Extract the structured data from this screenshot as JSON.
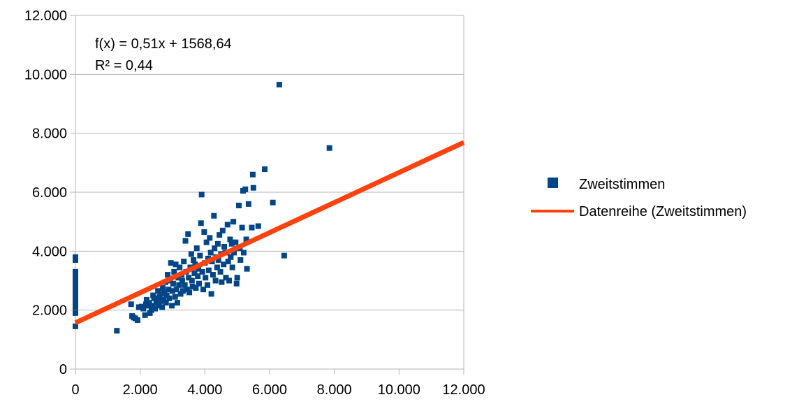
{
  "chart_data": {
    "type": "scatter",
    "title": "",
    "xlabel": "",
    "ylabel": "",
    "xlim": [
      0,
      12000
    ],
    "ylim": [
      0,
      12000
    ],
    "x_ticks": [
      0,
      2000,
      4000,
      6000,
      8000,
      10000,
      12000
    ],
    "y_ticks": [
      0,
      2000,
      4000,
      6000,
      8000,
      10000,
      12000
    ],
    "x_tick_labels": [
      "0",
      "2.000",
      "4.000",
      "6.000",
      "8.000",
      "10.000",
      "12.000"
    ],
    "y_tick_labels": [
      "0",
      "2.000",
      "4.000",
      "6.000",
      "8.000",
      "10.000",
      "12.000"
    ],
    "grid": "horizontal",
    "legend_position": "right",
    "series": [
      {
        "name": "Zweitstimmen",
        "type": "scatter",
        "color": "#004586",
        "points": [
          [
            0,
            1450
          ],
          [
            0,
            1900
          ],
          [
            0,
            2100
          ],
          [
            0,
            2250
          ],
          [
            0,
            2350
          ],
          [
            0,
            2450
          ],
          [
            0,
            2550
          ],
          [
            0,
            2650
          ],
          [
            0,
            2750
          ],
          [
            0,
            2850
          ],
          [
            0,
            2950
          ],
          [
            0,
            3100
          ],
          [
            0,
            3250
          ],
          [
            0,
            3300
          ],
          [
            0,
            3700
          ],
          [
            0,
            3800
          ],
          [
            1280,
            1300
          ],
          [
            1720,
            2200
          ],
          [
            1750,
            1800
          ],
          [
            1800,
            1750
          ],
          [
            1850,
            1720
          ],
          [
            1920,
            1660
          ],
          [
            1960,
            2100
          ],
          [
            2050,
            2120
          ],
          [
            2100,
            2050
          ],
          [
            2150,
            1830
          ],
          [
            2180,
            2200
          ],
          [
            2200,
            2350
          ],
          [
            2250,
            2150
          ],
          [
            2280,
            2250
          ],
          [
            2300,
            1900
          ],
          [
            2350,
            2000
          ],
          [
            2380,
            2150
          ],
          [
            2400,
            2500
          ],
          [
            2430,
            2400
          ],
          [
            2460,
            2050
          ],
          [
            2500,
            2250
          ],
          [
            2520,
            2350
          ],
          [
            2550,
            2650
          ],
          [
            2580,
            2150
          ],
          [
            2600,
            2450
          ],
          [
            2620,
            2300
          ],
          [
            2650,
            2550
          ],
          [
            2680,
            2100
          ],
          [
            2700,
            2750
          ],
          [
            2720,
            2350
          ],
          [
            2750,
            2600
          ],
          [
            2780,
            2950
          ],
          [
            2800,
            2250
          ],
          [
            2820,
            2500
          ],
          [
            2850,
            3200
          ],
          [
            2880,
            2700
          ],
          [
            2900,
            2400
          ],
          [
            2920,
            3000
          ],
          [
            2950,
            3600
          ],
          [
            2980,
            2150
          ],
          [
            3000,
            2650
          ],
          [
            3020,
            2900
          ],
          [
            3050,
            3300
          ],
          [
            3080,
            2450
          ],
          [
            3100,
            3550
          ],
          [
            3120,
            2700
          ],
          [
            3150,
            2250
          ],
          [
            3180,
            3100
          ],
          [
            3200,
            2850
          ],
          [
            3220,
            3450
          ],
          [
            3250,
            2550
          ],
          [
            3280,
            3200
          ],
          [
            3300,
            3000
          ],
          [
            3320,
            2650
          ],
          [
            3350,
            3650
          ],
          [
            3380,
            2850
          ],
          [
            3400,
            4350
          ],
          [
            3420,
            3300
          ],
          [
            3450,
            2700
          ],
          [
            3480,
            4580
          ],
          [
            3500,
            3100
          ],
          [
            3520,
            2600
          ],
          [
            3550,
            3450
          ],
          [
            3580,
            3900
          ],
          [
            3600,
            3000
          ],
          [
            3620,
            2800
          ],
          [
            3650,
            3700
          ],
          [
            3680,
            3250
          ],
          [
            3700,
            3550
          ],
          [
            3720,
            2750
          ],
          [
            3750,
            4100
          ],
          [
            3780,
            3150
          ],
          [
            3800,
            3400
          ],
          [
            3820,
            2900
          ],
          [
            3850,
            3850
          ],
          [
            3880,
            4950
          ],
          [
            3900,
            5920
          ],
          [
            3920,
            3300
          ],
          [
            3950,
            2700
          ],
          [
            3980,
            4650
          ],
          [
            4000,
            3600
          ],
          [
            4020,
            3100
          ],
          [
            4050,
            4300
          ],
          [
            4080,
            2850
          ],
          [
            4100,
            3750
          ],
          [
            4120,
            3350
          ],
          [
            4150,
            4450
          ],
          [
            4180,
            3950
          ],
          [
            4200,
            2550
          ],
          [
            4220,
            3650
          ],
          [
            4250,
            3200
          ],
          [
            4280,
            5200
          ],
          [
            4300,
            4100
          ],
          [
            4330,
            3000
          ],
          [
            4350,
            3800
          ],
          [
            4380,
            3450
          ],
          [
            4400,
            4250
          ],
          [
            4420,
            3700
          ],
          [
            4450,
            4550
          ],
          [
            4480,
            3300
          ],
          [
            4500,
            3900
          ],
          [
            4520,
            2950
          ],
          [
            4550,
            4700
          ],
          [
            4580,
            3550
          ],
          [
            4600,
            4150
          ],
          [
            4630,
            3950
          ],
          [
            4650,
            3100
          ],
          [
            4700,
            4900
          ],
          [
            4720,
            3650
          ],
          [
            4750,
            3000
          ],
          [
            4780,
            4400
          ],
          [
            4800,
            3800
          ],
          [
            4830,
            4250
          ],
          [
            4850,
            3450
          ],
          [
            4880,
            5000
          ],
          [
            4900,
            3950
          ],
          [
            4950,
            4300
          ],
          [
            4980,
            2900
          ],
          [
            5000,
            3100
          ],
          [
            5050,
            5550
          ],
          [
            5080,
            4100
          ],
          [
            5100,
            3700
          ],
          [
            5150,
            4800
          ],
          [
            5180,
            6050
          ],
          [
            5200,
            3950
          ],
          [
            5250,
            6100
          ],
          [
            5280,
            4400
          ],
          [
            5300,
            3400
          ],
          [
            5350,
            5600
          ],
          [
            5450,
            4800
          ],
          [
            5480,
            6600
          ],
          [
            5500,
            6150
          ],
          [
            5650,
            4850
          ],
          [
            5850,
            6780
          ],
          [
            6100,
            5650
          ],
          [
            6300,
            9650
          ],
          [
            6450,
            3850
          ],
          [
            7850,
            7500
          ]
        ]
      },
      {
        "name": "Datenreihe (Zweitstimmen)",
        "type": "line",
        "color": "#ff420e",
        "slope": 0.51,
        "intercept": 1568.64,
        "x_range": [
          0,
          12000
        ]
      }
    ],
    "annotations": {
      "equation": "f(x) = 0,51x + 1568,64",
      "r_squared": "R² = 0,44"
    }
  }
}
